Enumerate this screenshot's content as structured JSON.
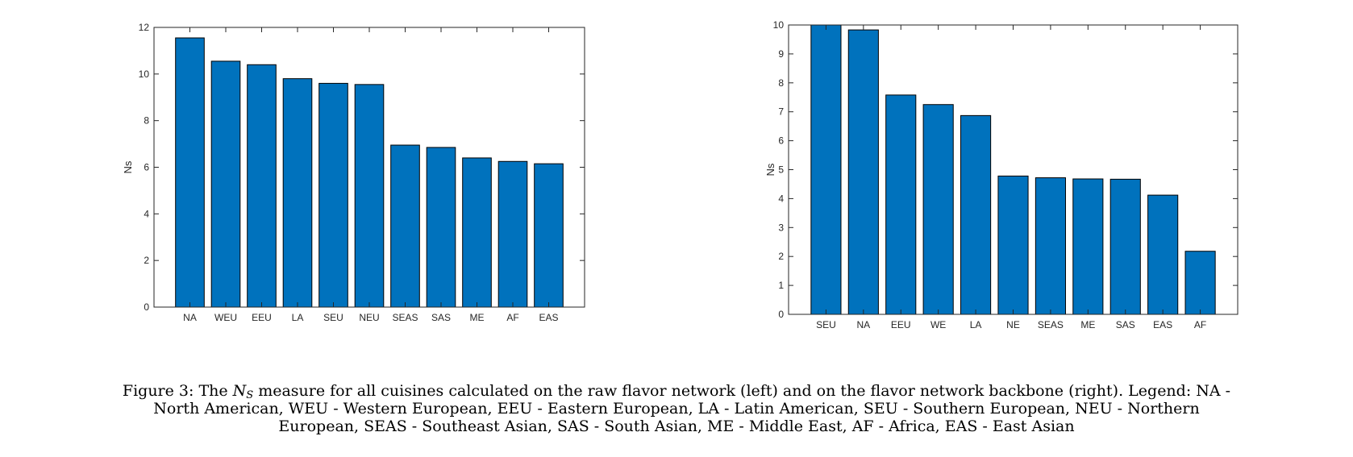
{
  "chart_data": [
    {
      "type": "bar",
      "categories": [
        "NA",
        "WEU",
        "EEU",
        "LA",
        "SEU",
        "NEU",
        "SEAS",
        "SAS",
        "ME",
        "AF",
        "EAS"
      ],
      "values": [
        11.55,
        10.55,
        10.4,
        9.8,
        9.6,
        9.55,
        6.95,
        6.85,
        6.4,
        6.25,
        6.15
      ],
      "ylabel": "Ns",
      "ylim": [
        0,
        12
      ],
      "yticks": [
        0,
        2,
        4,
        6,
        8,
        10,
        12
      ],
      "bar_color": "#0072BD",
      "grid": false
    },
    {
      "type": "bar",
      "categories": [
        "SEU",
        "NA",
        "EEU",
        "WE",
        "LA",
        "NE",
        "SEAS",
        "ME",
        "SAS",
        "EAS",
        "AF"
      ],
      "values": [
        10.0,
        9.83,
        7.58,
        7.25,
        6.87,
        4.78,
        4.72,
        4.68,
        4.67,
        4.12,
        2.18
      ],
      "ylabel": "Ns",
      "ylim": [
        0,
        10
      ],
      "yticks": [
        0,
        1,
        2,
        3,
        4,
        5,
        6,
        7,
        8,
        9,
        10
      ],
      "bar_color": "#0072BD",
      "grid": false
    }
  ],
  "caption": {
    "label": "Figure 3:",
    "prefix": " The ",
    "symbol": "N",
    "subscript": "S",
    "line1_rest": " measure for all cuisines calculated on the raw flavor network (left) and on the flavor network backbone (right). Legend: NA -",
    "line2": "North American, WEU - Western European, EEU - Eastern European, LA - Latin American, SEU - Southern European, NEU - Northern",
    "line3": "European, SEAS - Southeast Asian, SAS - South Asian, ME - Middle East, AF - Africa, EAS - East Asian"
  }
}
